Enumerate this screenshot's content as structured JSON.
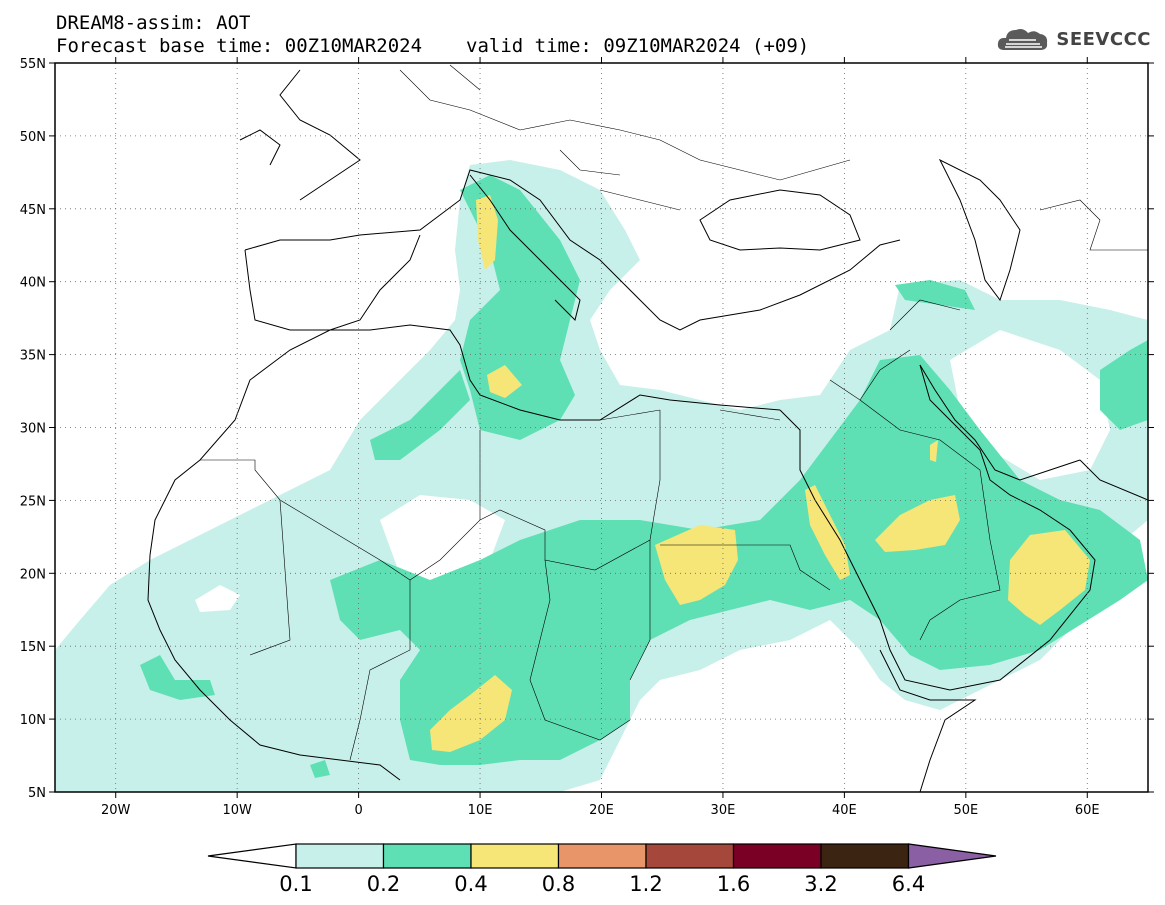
{
  "header": {
    "title": "DREAM8-assim: AOT",
    "base_time": "Forecast base time: 00Z10MAR2024",
    "valid_time": "valid time: 09Z10MAR2024 (+09)",
    "logo_text": "SEEVCCC",
    "logo_icon": "cloud-icon"
  },
  "map": {
    "lon_range": [
      -25,
      65
    ],
    "lat_range": [
      5,
      55
    ],
    "lat_labels": [
      "5N",
      "10N",
      "15N",
      "20N",
      "25N",
      "30N",
      "35N",
      "40N",
      "45N",
      "50N",
      "55N"
    ],
    "lon_labels": [
      "20W",
      "10W",
      "0",
      "10E",
      "20E",
      "30E",
      "40E",
      "50E",
      "60E"
    ],
    "lon_label_values": [
      -20,
      -10,
      0,
      10,
      20,
      30,
      40,
      50,
      60
    ],
    "lat_label_values": [
      5,
      10,
      15,
      20,
      25,
      30,
      35,
      40,
      45,
      50,
      55
    ],
    "grid": "dotted",
    "coastline_color": "#000000"
  },
  "colorbar": {
    "labels": [
      "0.1",
      "0.2",
      "0.4",
      "0.8",
      "1.2",
      "1.6",
      "3.2",
      "6.4"
    ],
    "under_color": "#ffffff",
    "colors": [
      "#c8f0ea",
      "#5ee0b4",
      "#f5e677",
      "#e8956a",
      "#a5483b",
      "#7a0026",
      "#3b2412"
    ],
    "over_color": "#8a5fa4"
  }
}
